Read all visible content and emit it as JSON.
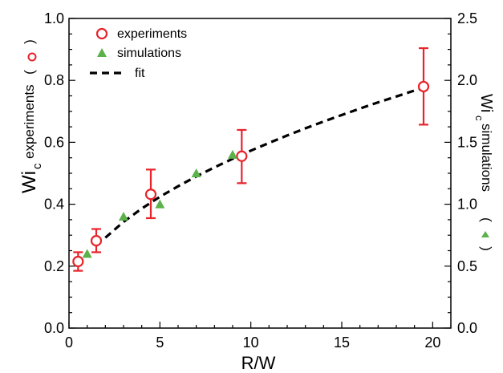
{
  "chart_data": {
    "type": "scatter",
    "title": "",
    "xlabel": "R/W",
    "ylabel": {
      "main": "Wi",
      "sub": "c",
      "rest": "experiments",
      "paren_open": "(",
      "paren_close": ")"
    },
    "y2label": {
      "main": "Wi",
      "sub": "c",
      "rest": "simulations",
      "paren_open": "(",
      "paren_close": ")"
    },
    "xlim": [
      0,
      21
    ],
    "ylim": [
      0,
      1.0
    ],
    "y2lim": [
      0,
      2.5
    ],
    "xticks": [
      "0",
      "5",
      "10",
      "15",
      "20"
    ],
    "yticks": [
      "0.0",
      "0.2",
      "0.4",
      "0.6",
      "0.8",
      "1.0"
    ],
    "y2ticks": [
      "0.0",
      "0.5",
      "1.0",
      "1.5",
      "2.0",
      "2.5"
    ],
    "grid": false,
    "legend_position": "top-left",
    "colors": {
      "experiments": "#e8232a",
      "simulations": "#5bb14a",
      "fit": "#000000"
    },
    "series": [
      {
        "name": "experiments",
        "axis": "left",
        "marker": "open-circle",
        "points": [
          {
            "x": 0.5,
            "y": 0.215,
            "err_low": 0.185,
            "err_high": 0.245
          },
          {
            "x": 1.5,
            "y": 0.282,
            "err_low": 0.245,
            "err_high": 0.32
          },
          {
            "x": 4.5,
            "y": 0.432,
            "err_low": 0.355,
            "err_high": 0.512
          },
          {
            "x": 9.5,
            "y": 0.555,
            "err_low": 0.468,
            "err_high": 0.64
          },
          {
            "x": 19.5,
            "y": 0.78,
            "err_low": 0.657,
            "err_high": 0.904
          }
        ]
      },
      {
        "name": "simulations",
        "axis": "right",
        "marker": "filled-triangle",
        "points": [
          {
            "x": 1.0,
            "y": 0.6
          },
          {
            "x": 3.0,
            "y": 0.9
          },
          {
            "x": 5.0,
            "y": 1.0
          },
          {
            "x": 7.0,
            "y": 1.25
          },
          {
            "x": 9.0,
            "y": 1.4
          }
        ]
      },
      {
        "name": "fit",
        "axis": "left",
        "style": "dashed",
        "x": [
          2,
          3,
          4,
          5,
          6,
          7,
          8,
          9,
          10,
          11,
          12,
          13,
          14,
          15,
          16,
          17,
          18,
          19,
          19.5
        ],
        "y": [
          0.292,
          0.343,
          0.386,
          0.424,
          0.458,
          0.49,
          0.519,
          0.547,
          0.573,
          0.598,
          0.622,
          0.645,
          0.667,
          0.688,
          0.709,
          0.729,
          0.748,
          0.767,
          0.776
        ]
      }
    ]
  }
}
